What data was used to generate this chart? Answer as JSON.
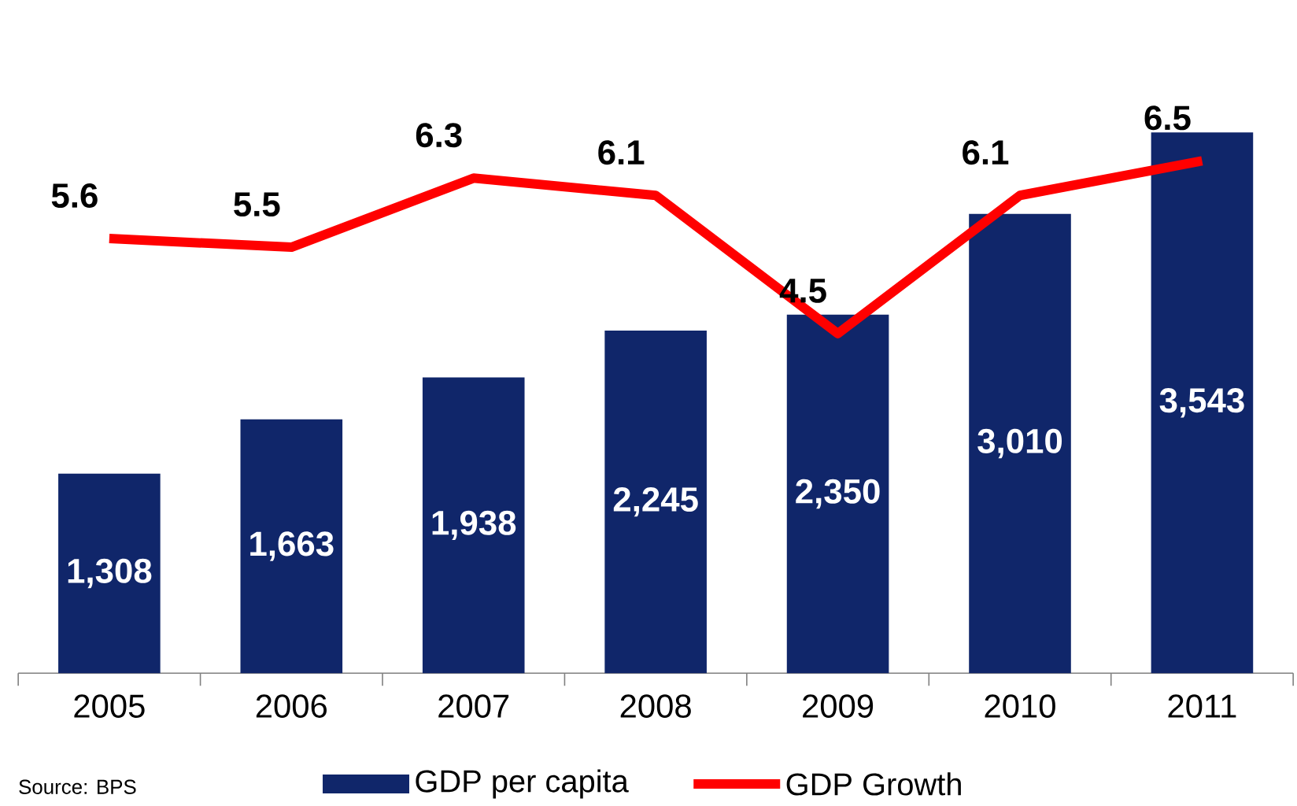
{
  "chart_data": {
    "type": "bar",
    "categories": [
      "2005",
      "2006",
      "2007",
      "2008",
      "2009",
      "2010",
      "2011"
    ],
    "series": [
      {
        "name": "GDP per capita",
        "color": "#10266a",
        "values": [
          1308,
          1663,
          1938,
          2245,
          2350,
          3010,
          3543
        ],
        "value_labels": [
          "1,308",
          "1,663",
          "1,938",
          "2,245",
          "2,350",
          "3,010",
          "3,543"
        ]
      },
      {
        "name": "GDP Growth",
        "type": "line",
        "axis": "y2",
        "color": "#ff0000",
        "values": [
          5.6,
          5.5,
          6.3,
          6.1,
          4.5,
          6.1,
          6.5
        ],
        "value_labels": [
          "5.6",
          "5.5",
          "6.3",
          "6.1",
          "4.5",
          "6.1",
          "6.5"
        ]
      }
    ],
    "annotations": [
      "Source: BPS"
    ],
    "legend": "bottom",
    "grid": false,
    "tick_labels": "x",
    "marker": "none",
    "line_style": "solid"
  }
}
